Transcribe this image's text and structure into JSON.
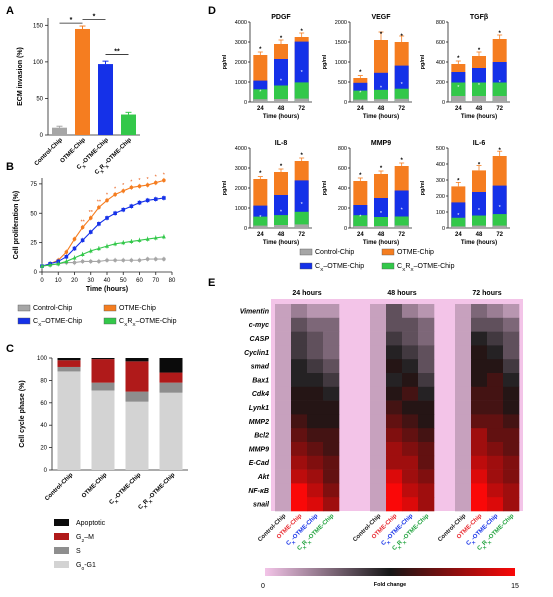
{
  "panel_labels": [
    "A",
    "B",
    "C",
    "D",
    "E"
  ],
  "chart_data": [
    {
      "panel": "A",
      "type": "bar",
      "ylabel": "ECM invasion (%)",
      "ylim": [
        0,
        160
      ],
      "yticks": [
        0,
        50,
        100,
        150
      ],
      "categories": [
        "Control-Chip",
        "OTME-Chip",
        "CX-OTME-Chip",
        "CXRX-OTME-Chip"
      ],
      "values": [
        10,
        145,
        97,
        28
      ],
      "errors": [
        2,
        4,
        4,
        3
      ],
      "colors": [
        "#a6a6a6",
        "#f57d20",
        "#1531e8",
        "#33c84a"
      ],
      "significance": [
        {
          "from": 0,
          "to": 1,
          "label": "*"
        },
        {
          "from": 1,
          "to": 2,
          "label": "*"
        },
        {
          "from": 2,
          "to": 3,
          "label": "**"
        }
      ]
    },
    {
      "panel": "B",
      "type": "line",
      "xlabel": "Time (hours)",
      "ylabel": "Cell proliferation (%)",
      "xlim": [
        0,
        80
      ],
      "ylim": [
        0,
        80
      ],
      "xticks": [
        0,
        10,
        20,
        30,
        40,
        50,
        60,
        70,
        80
      ],
      "yticks": [
        0,
        25,
        50,
        75
      ],
      "x": [
        0,
        5,
        10,
        15,
        20,
        25,
        30,
        35,
        40,
        45,
        50,
        55,
        60,
        65,
        70,
        75
      ],
      "series": [
        {
          "name": "Control-Chip",
          "color": "#a6a6a6",
          "marker": "circle",
          "values": [
            5,
            6,
            7,
            8,
            8,
            9,
            9,
            9,
            10,
            10,
            10,
            10,
            10,
            11,
            11,
            11
          ]
        },
        {
          "name": "OTME-Chip",
          "color": "#f57d20",
          "marker": "circle",
          "values": [
            5,
            7,
            10,
            17,
            28,
            38,
            46,
            55,
            61,
            66,
            69,
            72,
            73,
            74,
            76,
            78
          ]
        },
        {
          "name": "CX-OTME-Chip",
          "color": "#1531e8",
          "marker": "square",
          "values": [
            5,
            7,
            9,
            13,
            20,
            27,
            34,
            41,
            46,
            50,
            53,
            56,
            59,
            61,
            62,
            63
          ]
        },
        {
          "name": "CXRX-OTME-Chip",
          "color": "#33c84a",
          "marker": "triangle",
          "values": [
            5,
            6,
            7,
            9,
            12,
            15,
            18,
            20,
            22,
            24,
            25,
            26,
            27,
            28,
            29,
            30
          ]
        }
      ],
      "annotations": [
        "**",
        "**",
        "**",
        "*",
        "*",
        "*",
        "*",
        "*",
        "*",
        "*",
        "*"
      ],
      "legend": {
        "items": [
          {
            "label": "Control-Chip",
            "color": "#a6a6a6"
          },
          {
            "label": "OTME-Chip",
            "color": "#f57d20"
          },
          {
            "label": "CX–OTME-Chip",
            "color": "#1531e8"
          },
          {
            "label": "CXRX–OTME-Chip",
            "color": "#33c84a"
          }
        ]
      }
    },
    {
      "panel": "C",
      "type": "bar",
      "stacked": true,
      "ylabel": "Cell cycle phase (%)",
      "ylim": [
        0,
        100
      ],
      "yticks": [
        0,
        20,
        40,
        60,
        80,
        100
      ],
      "categories": [
        "Control-Chip",
        "OTME-Chip",
        "CX-OTME-Chip",
        "CXRX-OTME-Chip"
      ],
      "series": [
        {
          "name": "G0-G1",
          "color": "#d3d3d3",
          "values": [
            88,
            71,
            61,
            69
          ]
        },
        {
          "name": "S",
          "color": "#8e8e8e",
          "values": [
            4,
            7,
            9,
            9
          ]
        },
        {
          "name": "G2-M",
          "color": "#b01a1a",
          "values": [
            6,
            21,
            27,
            9
          ]
        },
        {
          "name": "Apoptotic",
          "color": "#0b0b0b",
          "values": [
            2,
            1,
            3,
            13
          ]
        }
      ],
      "legend": {
        "labels": [
          "Apoptotic",
          "G2–M",
          "S",
          "G0-G1"
        ]
      }
    },
    {
      "panel": "D",
      "type": "bar",
      "stacked": true,
      "xlabel": "Time (hours)",
      "ylabel": "pg/ml",
      "categories": [
        "24",
        "48",
        "72"
      ],
      "charts": [
        {
          "title": "PDGF",
          "ylim": [
            0,
            4000
          ],
          "yticks": [
            0,
            1000,
            2000,
            3000,
            4000
          ],
          "ytick_labels": [
            "0",
            "1000",
            "2000",
            "3000",
            "4000"
          ],
          "control": [
            140,
            150,
            170
          ],
          "cx": [
            550,
            750,
            900
          ],
          "cx_rest": [
            380,
            1250,
            1950
          ],
          "otme_total": [
            2350,
            2900,
            3250
          ],
          "errors": [
            150,
            200,
            200
          ]
        },
        {
          "title": "VEGF",
          "ylim": [
            0,
            2000
          ],
          "yticks": [
            0,
            500,
            1000,
            1500,
            2000
          ],
          "ytick_labels": [
            "0",
            "500",
            "1000",
            "1500",
            "2000"
          ],
          "control": [
            60,
            70,
            80
          ],
          "cx": [
            250,
            260,
            280
          ],
          "cx_rest": [
            170,
            400,
            550
          ],
          "otme_total": [
            600,
            1550,
            1500
          ],
          "errors": [
            60,
            200,
            150
          ]
        },
        {
          "title": "TGFβ",
          "ylim": [
            0,
            800
          ],
          "yticks": [
            0,
            200,
            400,
            600,
            800
          ],
          "ytick_labels": [
            "0",
            "200",
            "400",
            "600",
            "800"
          ],
          "control": [
            60,
            60,
            60
          ],
          "cx": [
            150,
            150,
            150
          ],
          "cx_rest": [
            90,
            130,
            190
          ],
          "otme_total": [
            380,
            460,
            630
          ],
          "errors": [
            30,
            40,
            40
          ]
        },
        {
          "title": "IL-8",
          "ylim": [
            0,
            4000
          ],
          "yticks": [
            0,
            1000,
            2000,
            3000,
            4000
          ],
          "ytick_labels": [
            "0",
            "1000",
            "2000",
            "3000",
            "4000"
          ],
          "control": [
            120,
            150,
            180
          ],
          "cx": [
            500,
            550,
            700
          ],
          "cx_rest": [
            500,
            950,
            1500
          ],
          "otme_total": [
            2450,
            2800,
            3350
          ],
          "errors": [
            120,
            150,
            150
          ]
        },
        {
          "title": "MMP9",
          "ylim": [
            0,
            800
          ],
          "yticks": [
            0,
            200,
            400,
            600,
            800
          ],
          "ytick_labels": [
            "0",
            "200",
            "400",
            "600",
            "800"
          ],
          "control": [
            20,
            20,
            25
          ],
          "cx": [
            120,
            100,
            100
          ],
          "cx_rest": [
            90,
            180,
            250
          ],
          "otme_total": [
            470,
            540,
            620
          ],
          "errors": [
            30,
            30,
            30
          ]
        },
        {
          "title": "IL-6",
          "ylim": [
            0,
            500
          ],
          "yticks": [
            0,
            100,
            200,
            300,
            400,
            500
          ],
          "ytick_labels": [
            "0",
            "100",
            "200",
            "300",
            "400",
            "500"
          ],
          "control": [
            10,
            15,
            15
          ],
          "cx": [
            60,
            70,
            80
          ],
          "cx_rest": [
            90,
            140,
            170
          ],
          "otme_total": [
            260,
            360,
            450
          ],
          "errors": [
            25,
            30,
            30
          ]
        }
      ],
      "legend": {
        "items": [
          {
            "label": "Control-Chip",
            "color": "#a6a6a6"
          },
          {
            "label": "OTME-Chip",
            "color": "#f57d20"
          },
          {
            "label": "CX–OTME-Chip",
            "color": "#1531e8"
          },
          {
            "label": "CXRX–OTME-Chip",
            "color": "#33c84a"
          }
        ]
      }
    },
    {
      "panel": "E",
      "type": "heatmap",
      "groups": [
        "24 hours",
        "48 hours",
        "72 hours"
      ],
      "columns": [
        "Control-Chip",
        "OTME-Chip",
        "CX-OTME-Chip",
        "CXRX-OTME-Chip"
      ],
      "column_colors": [
        "#1c1c1c",
        "#e8252b",
        "#1531e8",
        "#1fa23c"
      ],
      "rows": [
        "Vimentin",
        "c-myc",
        "CASP",
        "Cyclin1",
        "smad",
        "Bax1",
        "Cdk4",
        "Lynk1",
        "MMP2",
        "Bcl2",
        "MMP9",
        "E-Cad",
        "Akt",
        "NF-κB",
        "snail"
      ],
      "colorbar": {
        "min": 0,
        "max": 15,
        "label": "Fold change",
        "min_label": "0",
        "max_label": "15"
      },
      "values": [
        [
          [
            1.5,
            3,
            2,
            2
          ],
          [
            1.5,
            5,
            3,
            2
          ],
          [
            1.5,
            4,
            3,
            2
          ]
        ],
        [
          [
            1.5,
            5,
            4,
            4
          ],
          [
            1.5,
            5,
            5,
            4
          ],
          [
            1.5,
            5,
            5,
            4
          ]
        ],
        [
          [
            1.5,
            6,
            5,
            4
          ],
          [
            1.5,
            6,
            5,
            4
          ],
          [
            1.5,
            7,
            6,
            5
          ]
        ],
        [
          [
            1.5,
            6,
            5,
            4
          ],
          [
            1.5,
            7,
            6,
            5
          ],
          [
            1.5,
            8,
            7,
            5
          ]
        ],
        [
          [
            1.5,
            7,
            6,
            5
          ],
          [
            1.5,
            8,
            7,
            5
          ],
          [
            1.5,
            8,
            8,
            6
          ]
        ],
        [
          [
            1.5,
            7,
            7,
            6
          ],
          [
            1.5,
            7,
            8,
            6
          ],
          [
            1.5,
            8,
            9,
            7
          ]
        ],
        [
          [
            1.5,
            8,
            8,
            7
          ],
          [
            1.5,
            8,
            9,
            7
          ],
          [
            1.5,
            9,
            9,
            8
          ]
        ],
        [
          [
            1.5,
            8,
            8,
            8
          ],
          [
            1.5,
            9,
            8,
            8
          ],
          [
            1.5,
            9,
            9,
            8
          ]
        ],
        [
          [
            1.5,
            9,
            8,
            8
          ],
          [
            1.5,
            10,
            9,
            8
          ],
          [
            1.5,
            10,
            10,
            9
          ]
        ],
        [
          [
            1.5,
            10,
            9,
            9
          ],
          [
            1.5,
            11,
            10,
            9
          ],
          [
            1.5,
            12,
            10,
            10
          ]
        ],
        [
          [
            1.5,
            11,
            10,
            9
          ],
          [
            1.5,
            12,
            11,
            10
          ],
          [
            1.5,
            12,
            11,
            10
          ]
        ],
        [
          [
            1.5,
            12,
            11,
            10
          ],
          [
            1.5,
            12,
            12,
            10
          ],
          [
            1.5,
            13,
            12,
            11
          ]
        ],
        [
          [
            1.5,
            13,
            12,
            10
          ],
          [
            1.5,
            14,
            12,
            11
          ],
          [
            1.5,
            14,
            12,
            11
          ]
        ],
        [
          [
            1.5,
            15,
            13,
            11
          ],
          [
            1.5,
            15,
            13,
            12
          ],
          [
            1.5,
            15,
            13,
            12
          ]
        ],
        [
          [
            1.5,
            15,
            14,
            12
          ],
          [
            1.5,
            15,
            14,
            12
          ],
          [
            1.5,
            15,
            14,
            12
          ]
        ]
      ]
    }
  ]
}
